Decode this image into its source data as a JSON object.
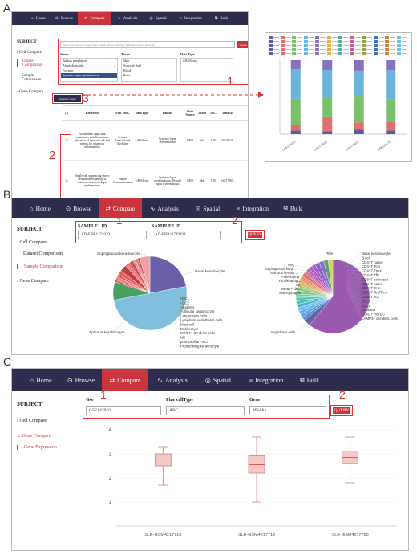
{
  "panels": {
    "a": "A",
    "b": "B",
    "c": "C"
  },
  "nav": {
    "home": "Home",
    "browse": "Browse",
    "compare": "Compare",
    "analysis": "Analysis",
    "spatial": "Spatial",
    "integration": "Integration",
    "bulk": "Bulk"
  },
  "sidebar": {
    "subject": "SUBJECT",
    "cell_compare": "Cell Compare",
    "dataset_comparison": "Dataset Comparison",
    "sample_comparison": "Sample Comparison",
    "gene_compare": "Gene Compare",
    "gene_expression": "Gene Expression"
  },
  "panel_a": {
    "search_placeholder": "Please enter keywords: support Data ItemID, Dataset, Pathology, Publication Source, Reference",
    "search_button": "search",
    "filter_headers": [
      "Status",
      "Tissue",
      "Data Type"
    ],
    "status_options": [
      "Bullous pemphigoid",
      "Atopic dermatitis",
      "Psoriasis",
      "Systemic lupus erythematosus"
    ],
    "status_badge": "8",
    "tissue_options": [
      "Skin",
      "Synovial fluid",
      "Blood",
      "Bone"
    ],
    "data_type_options": [
      "scRNA-seq"
    ],
    "generate_button": "generate charts",
    "table_headers": [
      "Reference",
      "Pub. Jou...",
      "Data Type",
      "Disease",
      "Data Source",
      "Tissue",
      "Tec...",
      "Data ID"
    ],
    "rows": [
      {
        "reference": "Nonlesional lupus skin contributes to inflammatory education of myeloid cells and primes for cutaneous inflammation",
        "journal": "Science Translational Medicine",
        "type": "scRNA-seq",
        "disease": "Systemic lupus erythematosus",
        "source": "GEO",
        "tissue": "Skin",
        "tech": "10X",
        "id": "GSE18647..."
      },
      {
        "reference": "Single-cell sequencing shows cellular heterogeneity of cutaneous lesions in lupus erythematosus",
        "journal": "Nature Communications",
        "type": "scRNA-seq",
        "disease": "Systemic lupus erythematosus; Discoid lupus erythematosus",
        "source": "GEO",
        "tissue": "Skin",
        "tech": "10X",
        "id": "GSE17963..."
      }
    ],
    "labels": {
      "one": "1",
      "two": "2",
      "three": "3"
    },
    "stacked_x": [
      "GSE186476",
      "GSE179633",
      "GSE179633",
      "GSE186476"
    ]
  },
  "panel_b": {
    "sample1_label": "SAMPLE1 ID",
    "sample2_label": "SAMPLE2 ID",
    "sample1_value": "AD-ERR11749391",
    "sample2_value": "AD-ERR11749398",
    "query_button": "QUERY",
    "labels": {
      "one": "1",
      "two": "2"
    },
    "pie1_labels_left": [
      "Suprapinous keratinocyte",
      "Spinous keratinocyte"
    ],
    "pie1_labels_right": [
      "Basal keratinocyte",
      "cDC1",
      "cDC2",
      "Doublets",
      "Follicular keratinocyte",
      "Langerhans cells",
      "Lymphatic endothelial cells",
      "Mast cell",
      "Melanocyte",
      "MKI67+ dendritic cells",
      "NK",
      "post-capillary ECs",
      "Proliferating keratinocyte"
    ],
    "pie2_labels_left": [
      "Treg",
      "Suprapinous kera...",
      "Spinous keratin...",
      "Proliferating",
      "Proliferating...",
      "NK",
      "MKI67+ de...",
      "Macrophages",
      "Langerhans cells"
    ],
    "pie2_labels_top": [
      "Tem"
    ],
    "pie2_labels_right": [
      "Basal keratinocyte",
      "B cell",
      "CD4+T naive",
      "CD4+T Tcm",
      "CD4+T Tpex",
      "CD4+T Tfh",
      "CD8+T activated",
      "CD8+T naive",
      "CD8+T Tem",
      "CD8+T Tex/Trm",
      "CD8+T Tcr",
      "cDC1",
      "cDC2",
      "Doublets",
      "FCN1+ mo-DC",
      "LAMP3+ dendritic cells"
    ]
  },
  "panel_c": {
    "gse_label": "Gse",
    "celltype_label": "Fine cellType",
    "gene_label": "Gene",
    "gse_value": "GSE142016",
    "celltype_value": "ABC",
    "gene_value": "MS4A1",
    "query_button": "QUERY",
    "labels": {
      "one": "1",
      "two": "2"
    }
  },
  "chart_data": [
    {
      "type": "bar",
      "title": "",
      "categories": [
        "GSE186476",
        "GSE179633",
        "GSE179633",
        "GSE186476"
      ],
      "series": [
        {
          "values": [
            0.05,
            0.04,
            0.06,
            0.05
          ]
        },
        {
          "values": [
            0.08,
            0.2,
            0.1,
            0.12
          ]
        },
        {
          "values": [
            0.35,
            0.25,
            0.35,
            0.3
          ]
        },
        {
          "values": [
            0.4,
            0.38,
            0.35,
            0.4
          ]
        },
        {
          "values": [
            0.12,
            0.13,
            0.14,
            0.13
          ]
        }
      ],
      "ylim": [
        0,
        1
      ]
    },
    {
      "type": "pie",
      "labels": [
        "Basal keratinocyte",
        "Spinous keratinocyte",
        "Suprapinous keratinocyte",
        "cDC1",
        "cDC2",
        "Doublets",
        "Follicular keratinocyte",
        "Langerhans cells",
        "Lymphatic endothelial cells",
        "Mast cell",
        "Melanocyte",
        "MKI67+ dendritic cells",
        "NK",
        "post-capillary ECs",
        "Proliferating keratinocyte"
      ],
      "values": [
        22,
        50,
        8,
        1,
        1.5,
        1,
        2,
        3,
        1,
        1,
        2,
        1,
        1,
        1,
        4.5
      ]
    },
    {
      "type": "pie",
      "labels": [
        "Langerhans cells",
        "Basal keratinocyte",
        "B cell",
        "CD4+T naive",
        "CD4+T Tcm",
        "CD4+T Tpex",
        "CD4+T Tfh",
        "CD8+T activated",
        "CD8+T naive",
        "CD8+T Tem",
        "CD8+T Tex/Trm",
        "CD8+T Tcr",
        "cDC1",
        "cDC2",
        "Doublets",
        "FCN1+ mo-DC",
        "LAMP3+ dendritic cells",
        "Macrophages",
        "MKI67+ de...",
        "NK",
        "Proliferating...",
        "Proliferating",
        "Spinous keratin...",
        "Suprapinous kera...",
        "Treg",
        "Tem"
      ],
      "values": [
        60,
        3,
        1.5,
        1.5,
        1.5,
        1.5,
        1.5,
        1.5,
        1.5,
        1.5,
        1.5,
        1.5,
        1,
        1,
        1,
        1,
        1,
        2,
        1,
        1.5,
        1.5,
        1.5,
        2,
        2,
        2,
        2
      ]
    },
    {
      "type": "box",
      "categories": [
        "SLE-GSM4217718",
        "SLE-GSM4217719",
        "SLE-GSM4217720"
      ],
      "boxes": [
        {
          "min": 1.7,
          "q1": 2.5,
          "median": 2.75,
          "q3": 3.0,
          "max": 3.3
        },
        {
          "min": 1.0,
          "q1": 2.2,
          "median": 2.55,
          "q3": 2.95,
          "max": 3.7
        },
        {
          "min": 1.8,
          "q1": 2.6,
          "median": 2.85,
          "q3": 3.1,
          "max": 3.7
        }
      ],
      "ylim": [
        0,
        4
      ],
      "yticks": [
        1,
        2,
        3,
        4
      ]
    }
  ]
}
